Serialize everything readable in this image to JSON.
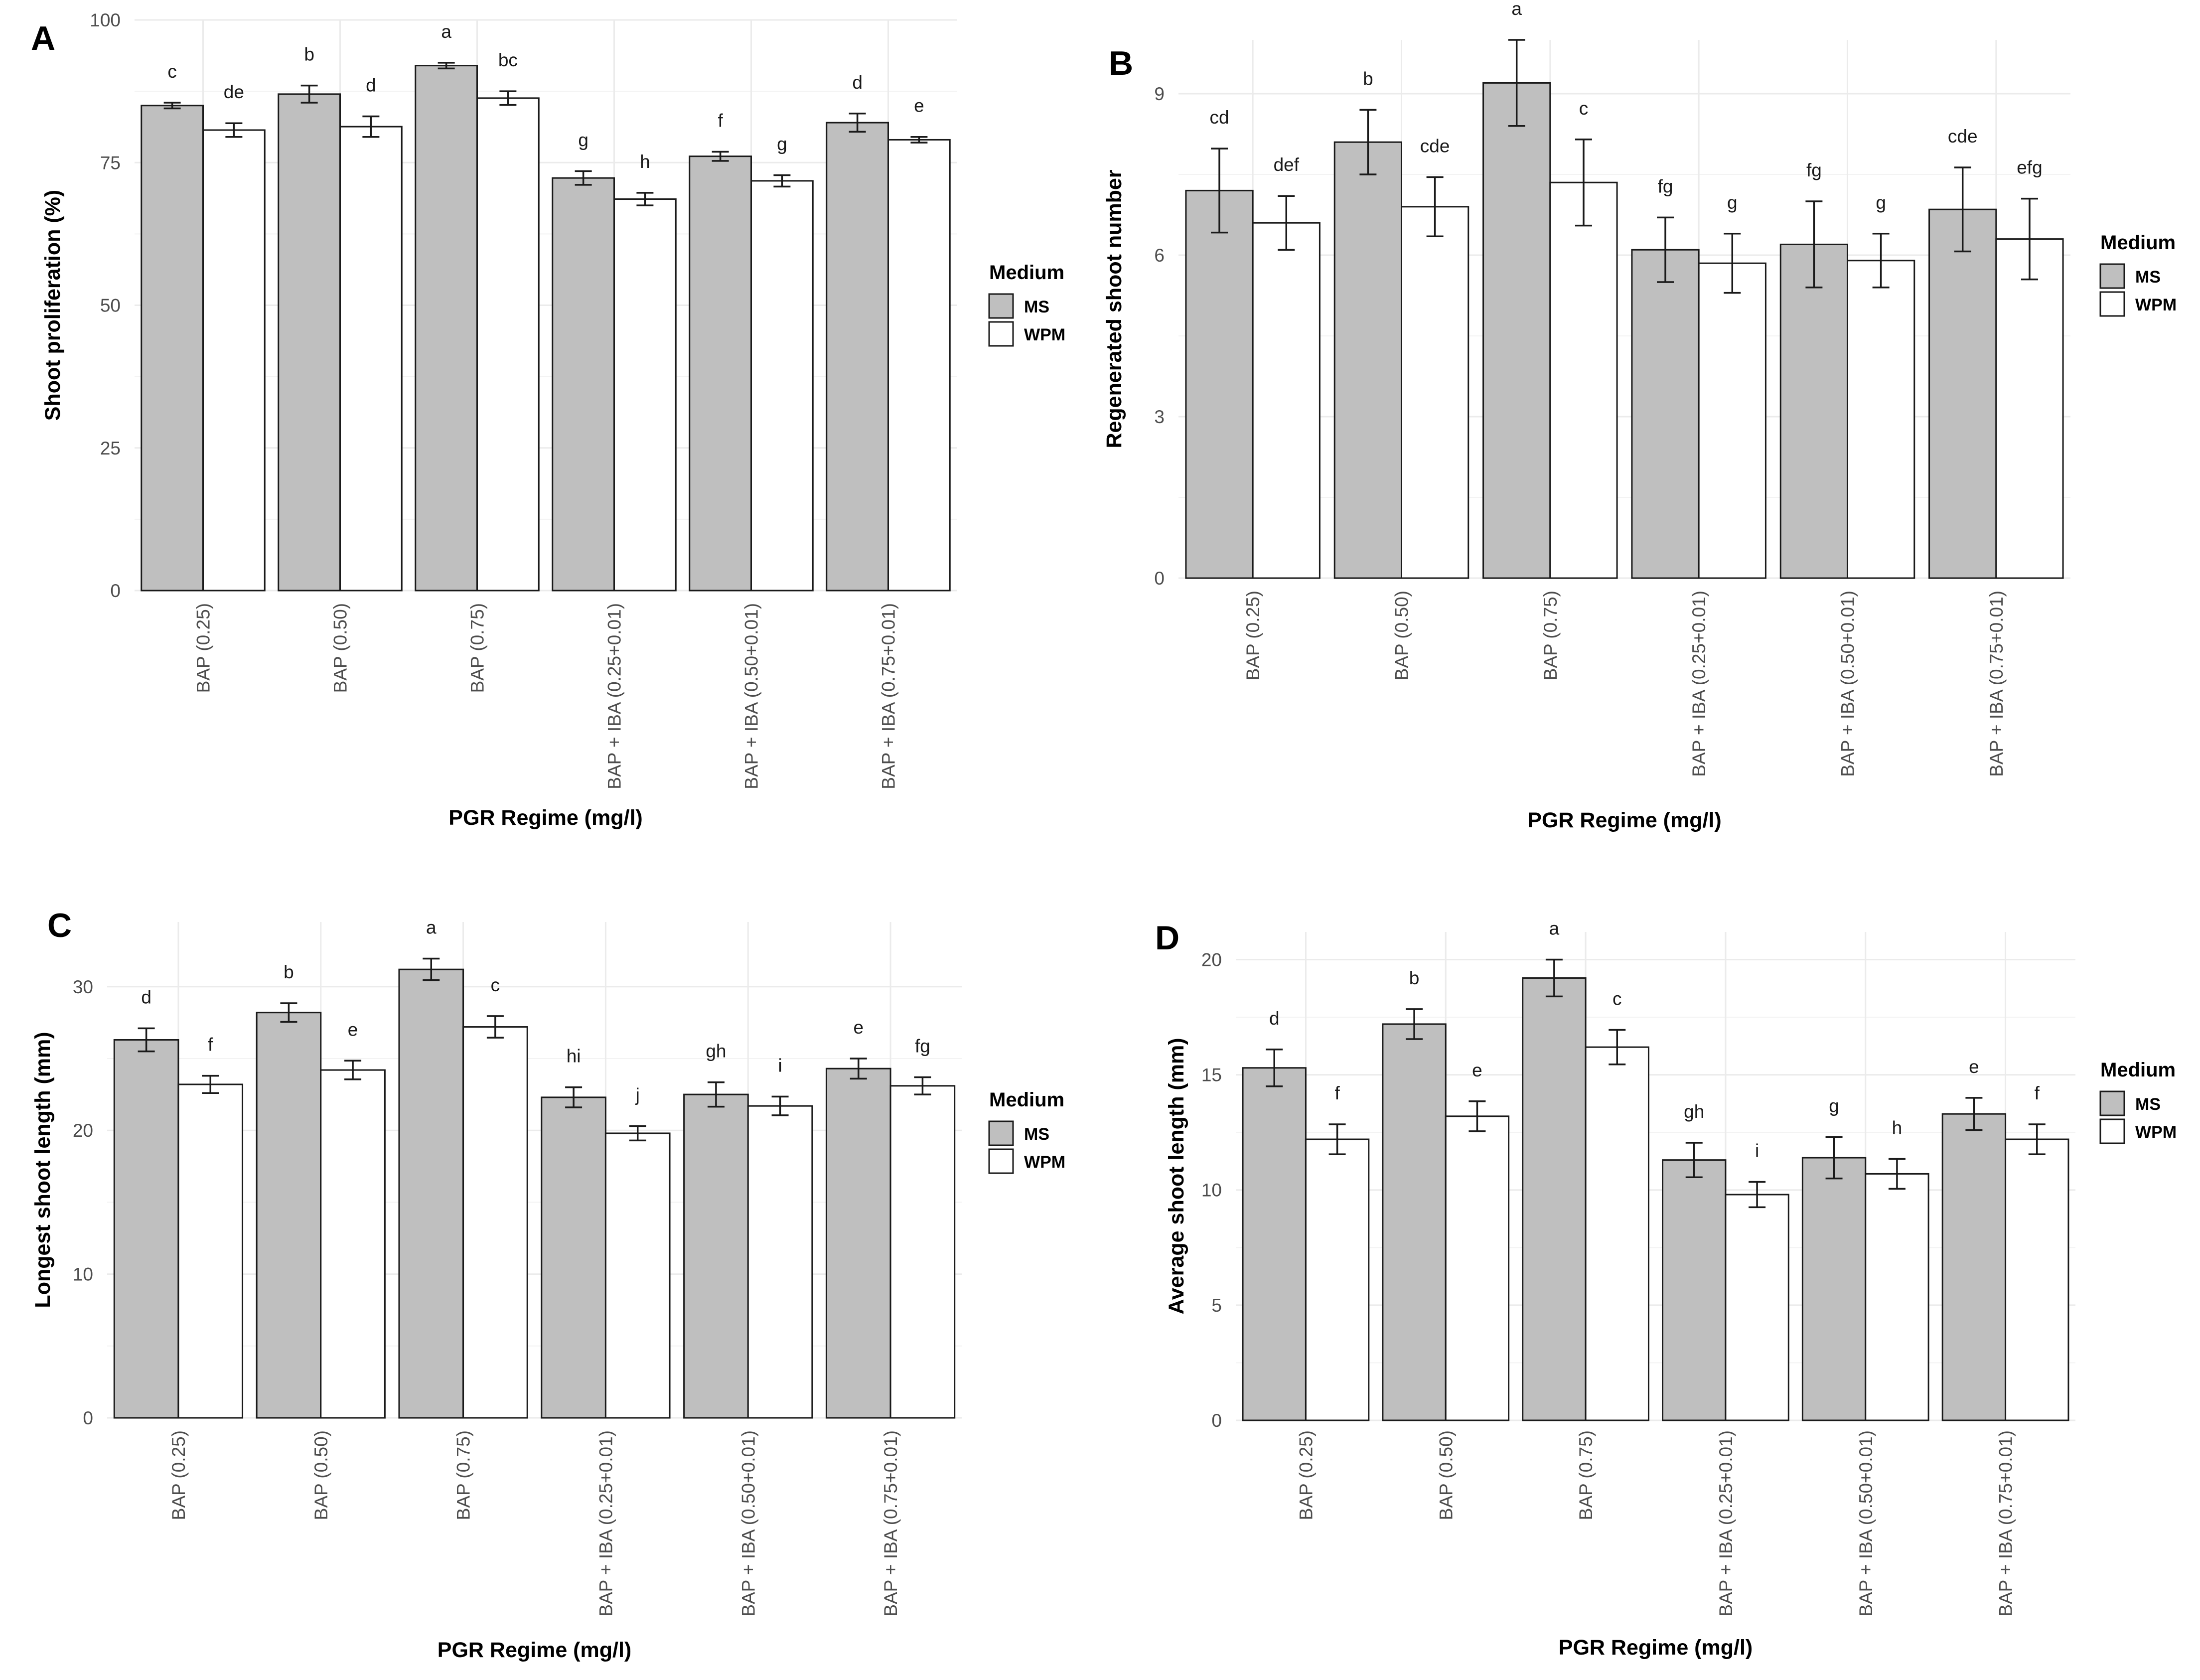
{
  "legend": {
    "title": "Medium",
    "items": [
      "MS",
      "WPM"
    ],
    "colors": {
      "MS": "#bfbfbf",
      "WPM": "#ffffff"
    }
  },
  "chart_data": [
    {
      "panel": "A",
      "type": "bar",
      "categories": [
        "BAP (0.25)",
        "BAP (0.50)",
        "BAP (0.75)",
        "BAP + IBA (0.25+0.01)",
        "BAP + IBA (0.50+0.01)",
        "BAP + IBA (0.75+0.01)"
      ],
      "xlabel": "PGR Regime (mg/l)",
      "ylabel": "Shoot proliferation (%)",
      "ylim": [
        0,
        100
      ],
      "yticks": [
        0,
        25,
        50,
        75,
        100
      ],
      "series": [
        {
          "name": "MS",
          "values": [
            85.0,
            87.0,
            92.0,
            72.3,
            76.1,
            82.0
          ],
          "errors": [
            0.5,
            1.5,
            0.5,
            1.2,
            0.8,
            1.6
          ],
          "letters": [
            "c",
            "b",
            "a",
            "g",
            "f",
            "d"
          ]
        },
        {
          "name": "WPM",
          "values": [
            80.7,
            81.3,
            86.3,
            68.6,
            71.8,
            79.0
          ],
          "errors": [
            1.2,
            1.8,
            1.2,
            1.1,
            1.0,
            0.5
          ],
          "letters": [
            "de",
            "d",
            "bc",
            "h",
            "g",
            "e"
          ]
        }
      ]
    },
    {
      "panel": "B",
      "type": "bar",
      "categories": [
        "BAP (0.25)",
        "BAP (0.50)",
        "BAP (0.75)",
        "BAP + IBA (0.25+0.01)",
        "BAP + IBA (0.50+0.01)",
        "BAP + IBA (0.75+0.01)"
      ],
      "xlabel": "PGR Regime (mg/l)",
      "ylabel": "Regenerated shoot number",
      "ylim": [
        0,
        10
      ],
      "yticks": [
        0,
        3,
        6,
        9
      ],
      "series": [
        {
          "name": "MS",
          "values": [
            7.2,
            8.1,
            9.2,
            6.1,
            6.2,
            6.85
          ],
          "errors": [
            0.78,
            0.6,
            0.8,
            0.6,
            0.8,
            0.78
          ],
          "letters": [
            "cd",
            "b",
            "a",
            "fg",
            "fg",
            "cde"
          ]
        },
        {
          "name": "WPM",
          "values": [
            6.6,
            6.9,
            7.35,
            5.85,
            5.9,
            6.3
          ],
          "errors": [
            0.5,
            0.55,
            0.8,
            0.55,
            0.5,
            0.75
          ],
          "letters": [
            "def",
            "cde",
            "c",
            "g",
            "g",
            "efg"
          ]
        }
      ]
    },
    {
      "panel": "C",
      "type": "bar",
      "categories": [
        "BAP (0.25)",
        "BAP (0.50)",
        "BAP (0.75)",
        "BAP + IBA (0.25+0.01)",
        "BAP + IBA (0.50+0.01)",
        "BAP + IBA (0.75+0.01)"
      ],
      "xlabel": "PGR Regime (mg/l)",
      "ylabel": "Longest shoot length (mm)",
      "ylim": [
        0,
        34.5
      ],
      "yticks": [
        0,
        10,
        20,
        30
      ],
      "series": [
        {
          "name": "MS",
          "values": [
            26.3,
            28.2,
            31.2,
            22.3,
            22.5,
            24.3
          ],
          "errors": [
            0.8,
            0.65,
            0.75,
            0.7,
            0.85,
            0.7
          ],
          "letters": [
            "d",
            "b",
            "a",
            "hi",
            "gh",
            "e"
          ]
        },
        {
          "name": "WPM",
          "values": [
            23.2,
            24.2,
            27.2,
            19.8,
            21.7,
            23.1
          ],
          "errors": [
            0.6,
            0.65,
            0.75,
            0.5,
            0.65,
            0.6
          ],
          "letters": [
            "f",
            "e",
            "c",
            "j",
            "i",
            "fg"
          ]
        }
      ]
    },
    {
      "panel": "D",
      "type": "bar",
      "categories": [
        "BAP (0.25)",
        "BAP (0.50)",
        "BAP (0.75)",
        "BAP + IBA (0.25+0.01)",
        "BAP + IBA (0.50+0.01)",
        "BAP + IBA (0.75+0.01)"
      ],
      "xlabel": "PGR Regime (mg/l)",
      "ylabel": "Average shoot length (mm)",
      "ylim": [
        0,
        21.2
      ],
      "yticks": [
        0,
        5,
        10,
        15,
        20
      ],
      "series": [
        {
          "name": "MS",
          "values": [
            15.3,
            17.2,
            19.2,
            11.3,
            11.4,
            13.3
          ],
          "errors": [
            0.8,
            0.65,
            0.8,
            0.75,
            0.9,
            0.7
          ],
          "letters": [
            "d",
            "b",
            "a",
            "gh",
            "g",
            "e"
          ]
        },
        {
          "name": "WPM",
          "values": [
            12.2,
            13.2,
            16.2,
            9.8,
            10.7,
            12.2
          ],
          "errors": [
            0.65,
            0.65,
            0.75,
            0.55,
            0.65,
            0.65
          ],
          "letters": [
            "f",
            "e",
            "c",
            "i",
            "h",
            "f"
          ]
        }
      ]
    }
  ]
}
